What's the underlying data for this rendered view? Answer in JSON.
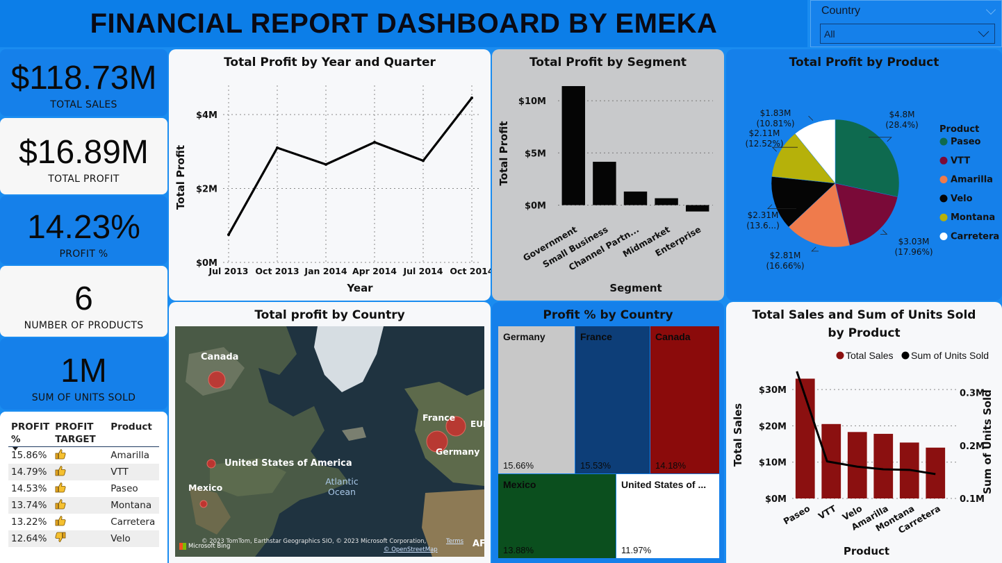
{
  "header": {
    "title": "FINANCIAL REPORT DASHBOARD BY EMEKA"
  },
  "slicer": {
    "label": "Country",
    "selected": "All"
  },
  "kpis": [
    {
      "value": "$118.73M",
      "caption": "TOTAL SALES"
    },
    {
      "value": "$16.89M",
      "caption": "TOTAL PROFIT"
    },
    {
      "value": "14.23%",
      "caption": "PROFIT %"
    },
    {
      "value": "6",
      "caption": "NUMBER OF PRODUCTS"
    },
    {
      "value": "1M",
      "caption": "SUM OF UNITS SOLD"
    }
  ],
  "profit_table": {
    "headers": [
      "PROFIT %",
      "PROFIT TARGET",
      "Product"
    ],
    "rows": [
      {
        "pct": "15.86%",
        "target": "thumbs-up",
        "product": "Amarilla"
      },
      {
        "pct": "14.79%",
        "target": "thumbs-up",
        "product": "VTT"
      },
      {
        "pct": "14.53%",
        "target": "thumbs-up",
        "product": "Paseo"
      },
      {
        "pct": "13.74%",
        "target": "thumbs-up",
        "product": "Montana"
      },
      {
        "pct": "13.22%",
        "target": "thumbs-up",
        "product": "Carretera"
      },
      {
        "pct": "12.64%",
        "target": "thumbs-down",
        "product": "Velo"
      }
    ]
  },
  "map": {
    "title": "Total profit by Country",
    "labels": {
      "canada": "Canada",
      "usa": "United States of America",
      "mexico": "Mexico",
      "france": "France",
      "germany": "Germany",
      "eur": "EUR",
      "ocean": "Atlantic Ocean",
      "af": "AF"
    },
    "attribution": "© 2023 TomTom, Earthstar Geographics SIO, © 2023 Microsoft Corporation,",
    "terms": "Terms",
    "osm": "© OpenStreetMap",
    "brand": "Microsoft Bing"
  },
  "treemap": {
    "title": "Profit % by Country",
    "items": [
      {
        "name": "Germany",
        "value": "15.66%",
        "color": "#c8c8c8"
      },
      {
        "name": "France",
        "value": "15.53%",
        "color": "#0d3e78"
      },
      {
        "name": "Canada",
        "value": "14.18%",
        "color": "#8b0b0b"
      },
      {
        "name": "Mexico",
        "value": "13.88%",
        "color": "#0b4f1e"
      },
      {
        "name": "United States of ...",
        "value": "11.97%",
        "color": "#ffffff"
      }
    ]
  },
  "chart_data": [
    {
      "type": "line",
      "title": "Total Profit by Year and Quarter",
      "xlabel": "Year",
      "ylabel": "Total Profit",
      "categories": [
        "Jul 2013",
        "Oct 2013",
        "Jan 2014",
        "Apr 2014",
        "Jul 2014",
        "Oct 2014"
      ],
      "values": [
        0.75,
        3.1,
        2.65,
        3.25,
        2.75,
        4.45
      ],
      "y_unit": "M",
      "ylim": [
        0,
        4.6
      ],
      "yticks": [
        "$0M",
        "$2M",
        "$4M"
      ],
      "ytick_values": [
        0,
        2,
        4
      ],
      "grid": true
    },
    {
      "type": "bar",
      "title": "Total Profit by Segment",
      "xlabel": "Segment",
      "ylabel": "Total Profit",
      "categories": [
        "Government",
        "Small Business",
        "Channel Partn...",
        "Midmarket",
        "Enterprise"
      ],
      "values": [
        11.4,
        4.15,
        1.3,
        0.66,
        -0.61
      ],
      "y_unit": "M",
      "ylim": [
        -0.7,
        11.6
      ],
      "yticks": [
        "$0M",
        "$5M",
        "$10M"
      ],
      "ytick_values": [
        0,
        5,
        10
      ]
    },
    {
      "type": "pie",
      "title": "Total Profit by Product",
      "legend_title": "Product",
      "legend_position": "right",
      "slices": [
        {
          "name": "Paseo",
          "value": 4.8,
          "label": "$4.8M (28.4%)",
          "color": "#0e6a4f"
        },
        {
          "name": "VTT",
          "value": 3.03,
          "label": "$3.03M (17.96%)",
          "color": "#7a0a38"
        },
        {
          "name": "Amarilla",
          "value": 2.81,
          "label": "$2.81M (16.66%)",
          "color": "#ef7b4c"
        },
        {
          "name": "Velo",
          "value": 2.31,
          "label": "$2.31M (13.6...)",
          "color": "#050505"
        },
        {
          "name": "Montana",
          "value": 2.11,
          "label": "$2.11M (12.52%)",
          "color": "#b6b10a"
        },
        {
          "name": "Carretera",
          "value": 1.83,
          "label": "$1.83M (10.81%)",
          "color": "#ffffff"
        }
      ]
    },
    {
      "type": "bar",
      "title": "Total Sales and Sum of Units Sold by Product",
      "xlabel": "Product",
      "ylabel": "Total Sales",
      "y2label": "Sum of Units Sold",
      "categories": [
        "Paseo",
        "VTT",
        "Velo",
        "Amarilla",
        "Montana",
        "Carretera"
      ],
      "series": [
        {
          "name": "Total Sales",
          "type": "bar",
          "values": [
            33.0,
            20.5,
            18.3,
            17.8,
            15.4,
            14.0
          ],
          "color": "#8b1010"
        },
        {
          "name": "Sum of Units Sold",
          "type": "line",
          "axis": "right",
          "values": [
            0.34,
            0.17,
            0.16,
            0.155,
            0.154,
            0.146
          ],
          "color": "#000000"
        }
      ],
      "ylim": [
        0,
        35
      ],
      "yticks": [
        "$0M",
        "$10M",
        "$20M",
        "$30M"
      ],
      "ytick_values": [
        0,
        10,
        20,
        30
      ],
      "y2lim": [
        0.1,
        0.34
      ],
      "y2ticks": [
        "0.1M",
        "0.2M",
        "0.3M"
      ],
      "y2tick_values": [
        0.1,
        0.2,
        0.3
      ],
      "legend_position": "top"
    }
  ]
}
